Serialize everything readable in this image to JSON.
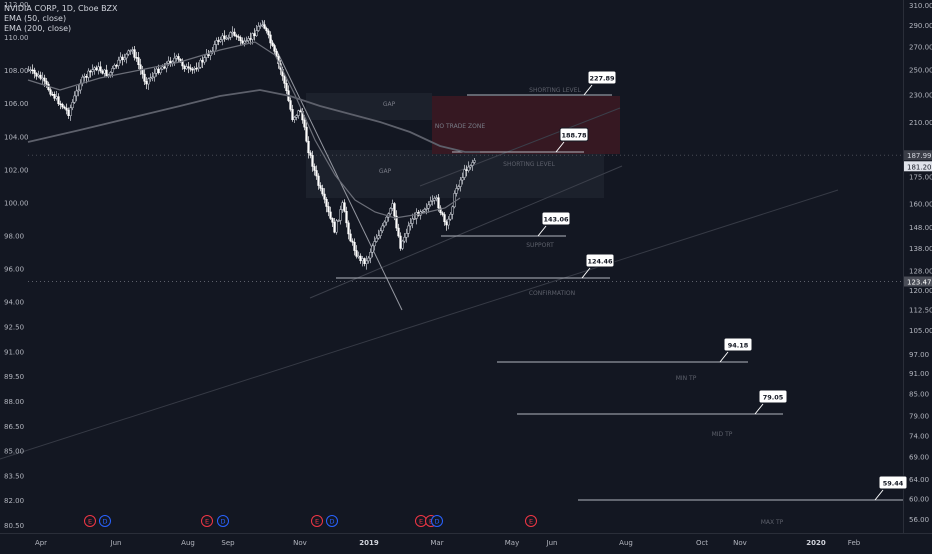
{
  "legend": {
    "title": "NVIDIA CORP, 1D, Cboe BZX",
    "ema50": "EMA (50, close)",
    "ema200": "EMA (200, close)"
  },
  "chart_data": {
    "type": "candlestick",
    "log_scale": true,
    "grid": false,
    "left_axis": {
      "ticks": [
        "112.00",
        "110.00",
        "108.00",
        "106.00",
        "104.00",
        "102.00",
        "100.00",
        "98.00",
        "96.00",
        "94.00",
        "92.50",
        "91.00",
        "89.50",
        "88.00",
        "86.50",
        "85.00",
        "83.50",
        "82.00",
        "80.50"
      ],
      "current_value": "123.47"
    },
    "right_axis": {
      "ticks": [
        "310.00",
        "290.00",
        "270.00",
        "250.00",
        "230.00",
        "210.00",
        "187.99",
        "181.20",
        "175.00",
        "160.00",
        "148.00",
        "138.00",
        "128.00",
        "123.47",
        "120.00",
        "112.50",
        "105.00",
        "97.00",
        "91.00",
        "85.00",
        "79.00",
        "74.00",
        "69.00",
        "64.00",
        "60.00",
        "56.00"
      ],
      "ema200_value": "187.99",
      "last_price": "181.20"
    },
    "x_axis": {
      "ticks": [
        "Apr",
        "Jun",
        "Aug",
        "Sep",
        "Nov",
        "2019",
        "Mar",
        "May",
        "Jun",
        "Aug",
        "Oct",
        "Nov",
        "2020",
        "Feb"
      ]
    },
    "levels": [
      {
        "name": "shorting-level-1",
        "value": 227.89,
        "label": "SHORTING LEVEL",
        "callout": "227.89"
      },
      {
        "name": "shorting-level-2",
        "value": 188.78,
        "label": "SHORTING LEVEL",
        "callout": "188.78"
      },
      {
        "name": "support",
        "value": 143.06,
        "label": "SUPPORT",
        "callout": "143.06"
      },
      {
        "name": "confirmation",
        "value": 124.46,
        "label": "CONFIRMATION",
        "callout": "124.46"
      },
      {
        "name": "min-tp",
        "value": 94.18,
        "label": "MIN TP",
        "callout": "94.18"
      },
      {
        "name": "mid-tp",
        "value": 79.05,
        "label": "MID TP",
        "callout": "79.05"
      },
      {
        "name": "max-tp",
        "value": 59.44,
        "label": "MAX TP",
        "callout": "59.44"
      }
    ],
    "zones": [
      {
        "name": "gap-upper",
        "label": "GAP"
      },
      {
        "name": "gap-lower",
        "label": "GAP"
      },
      {
        "name": "no-trade-zone",
        "label": "NO TRADE ZONE"
      }
    ],
    "events": [
      {
        "type": "E"
      },
      {
        "type": "D"
      },
      {
        "type": "E"
      },
      {
        "type": "D"
      },
      {
        "type": "E"
      },
      {
        "type": "D"
      },
      {
        "type": "E"
      },
      {
        "type": "E"
      },
      {
        "type": "D"
      },
      {
        "type": "E"
      }
    ],
    "colors": {
      "up": "#d1d4dc",
      "down": "#ffffff",
      "ema": "#6b6e78",
      "events": "#f23645",
      "dividends": "#2962ff",
      "zone": "#5c1e2c"
    }
  }
}
